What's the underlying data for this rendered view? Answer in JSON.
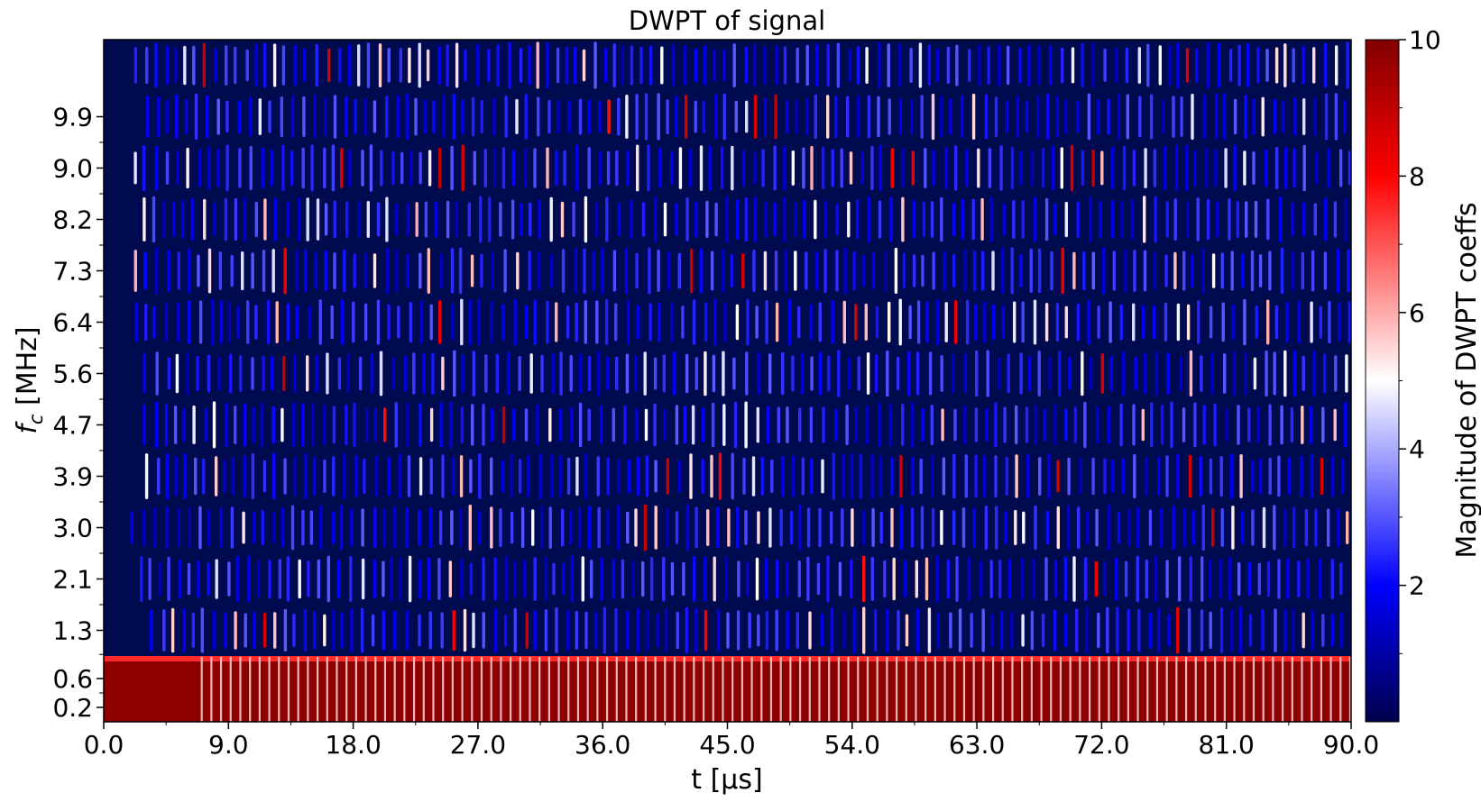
{
  "chart_data": {
    "type": "heatmap",
    "title": "DWPT of signal",
    "xlabel": "t [µs]",
    "ylabel": "f_c [MHz]",
    "ylabel_main": "f",
    "ylabel_sub": "c",
    "ylabel_unit": " [MHz]",
    "xlim": [
      0.0,
      90.0
    ],
    "x_ticks": [
      "0.0",
      "9.0",
      "18.0",
      "27.0",
      "36.0",
      "45.0",
      "54.0",
      "63.0",
      "72.0",
      "81.0",
      "90.0"
    ],
    "y_ticks": [
      "0.2",
      "0.6",
      "1.3",
      "2.1",
      "3.0",
      "3.9",
      "4.7",
      "5.6",
      "6.4",
      "7.3",
      "8.2",
      "9.0",
      "9.9"
    ],
    "colorbar": {
      "label": "Magnitude of DWPT coeffs",
      "range": [
        0,
        10
      ],
      "ticks": [
        "2",
        "4",
        "6",
        "8",
        "10"
      ],
      "colormap": "seismic-upper",
      "colors": [
        "#00004d",
        "#0000ff",
        "#ffffff",
        "#ff0000",
        "#800000"
      ]
    },
    "description_of_pattern": {
      "bands": 12,
      "dominant_band": "0.2",
      "dominant_band_value": 10,
      "dominant_band_onset_us": 7.0
    }
  }
}
